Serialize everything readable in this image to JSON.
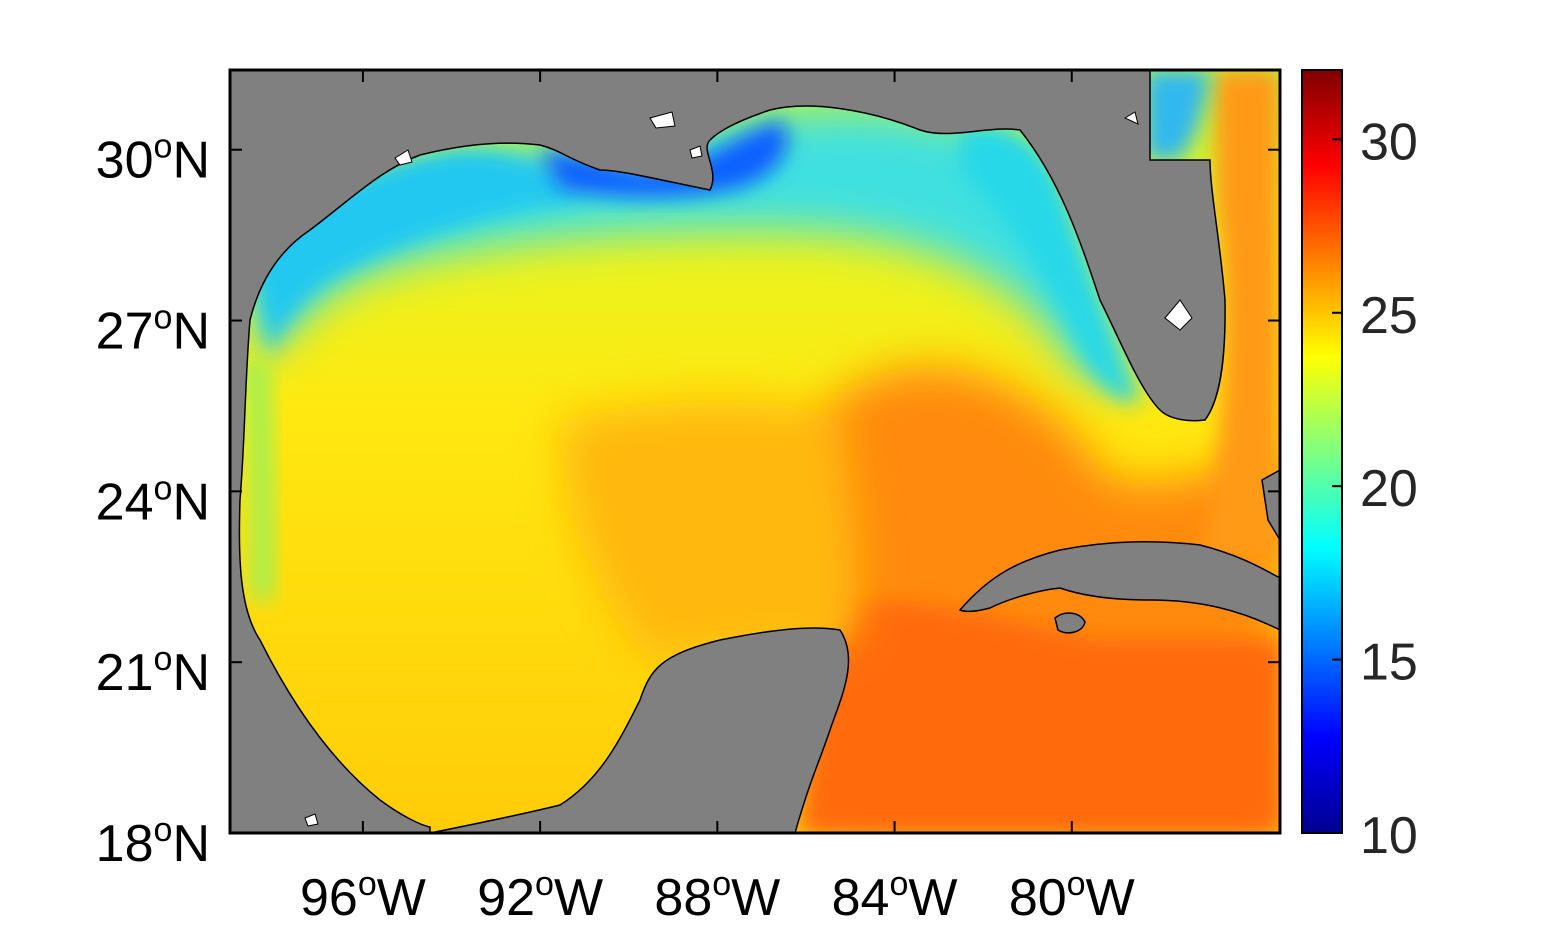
{
  "map": {
    "region": "Gulf of Mexico",
    "variable": "",
    "extent": {
      "lon": [
        -99,
        -75.3
      ],
      "lat": [
        18,
        31.4
      ]
    },
    "land_color": "#808080",
    "x_ticks": [
      {
        "lon": -96,
        "deg": "96",
        "sup": "o",
        "hemi": "W"
      },
      {
        "lon": -92,
        "deg": "92",
        "sup": "o",
        "hemi": "W"
      },
      {
        "lon": -88,
        "deg": "88",
        "sup": "o",
        "hemi": "W"
      },
      {
        "lon": -84,
        "deg": "84",
        "sup": "o",
        "hemi": "W"
      },
      {
        "lon": -80,
        "deg": "80",
        "sup": "o",
        "hemi": "W"
      }
    ],
    "y_ticks": [
      {
        "lat": 18,
        "deg": "18",
        "sup": "o",
        "hemi": "N"
      },
      {
        "lat": 21,
        "deg": "21",
        "sup": "o",
        "hemi": "N"
      },
      {
        "lat": 24,
        "deg": "24",
        "sup": "o",
        "hemi": "N"
      },
      {
        "lat": 27,
        "deg": "27",
        "sup": "o",
        "hemi": "N"
      },
      {
        "lat": 30,
        "deg": "30",
        "sup": "o",
        "hemi": "N"
      }
    ]
  },
  "colorbar": {
    "colormap": "jet",
    "min": 10,
    "max": 32,
    "ticks": [
      "10",
      "15",
      "20",
      "25",
      "30"
    ]
  }
}
